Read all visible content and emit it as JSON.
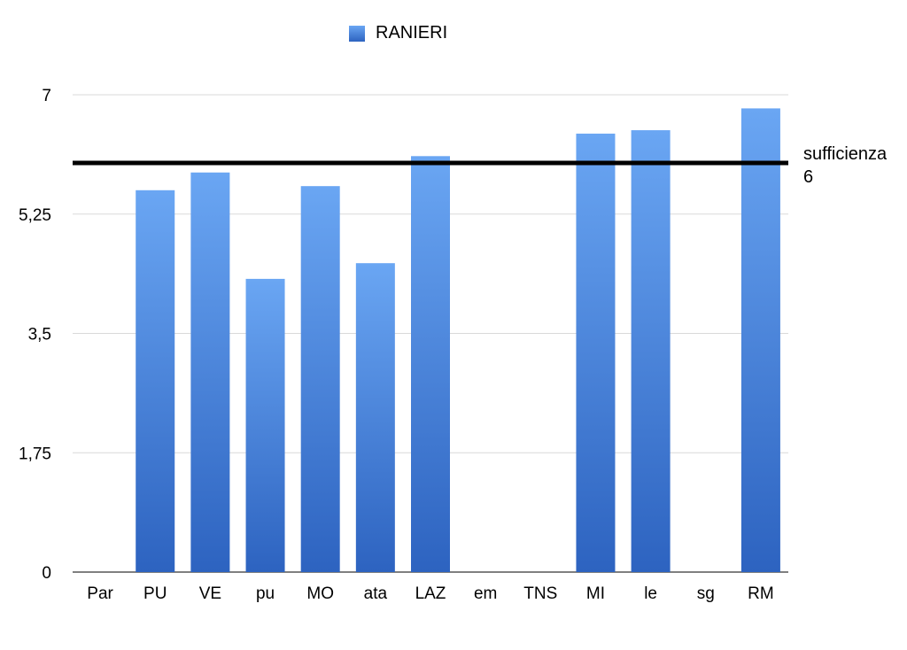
{
  "chart_data": {
    "type": "bar",
    "categories": [
      "Par",
      "PU",
      "VE",
      "pu",
      "MO",
      "ata",
      "LAZ",
      "em",
      "TNS",
      "MI",
      "le",
      "sg",
      "RM"
    ],
    "series": [
      {
        "name": "RANIERI",
        "values": [
          null,
          5.6,
          5.86,
          4.3,
          5.66,
          4.53,
          6.1,
          null,
          null,
          6.43,
          6.48,
          null,
          6.8
        ]
      }
    ],
    "ylim": [
      0,
      7
    ],
    "yticks": [
      "0",
      "1,75",
      "3,5",
      "5,25",
      "7"
    ],
    "ytick_values": [
      0,
      1.75,
      3.5,
      5.25,
      7
    ],
    "reference_line": {
      "value": 6,
      "label_line1": "sufficienza",
      "label_line2": "6"
    },
    "grid": true,
    "legend_position": "top",
    "colors": {
      "bar_top": "#6aa6f3",
      "bar_bottom": "#2d63c0",
      "grid": "#d9d9d9",
      "reference": "#000000"
    }
  }
}
